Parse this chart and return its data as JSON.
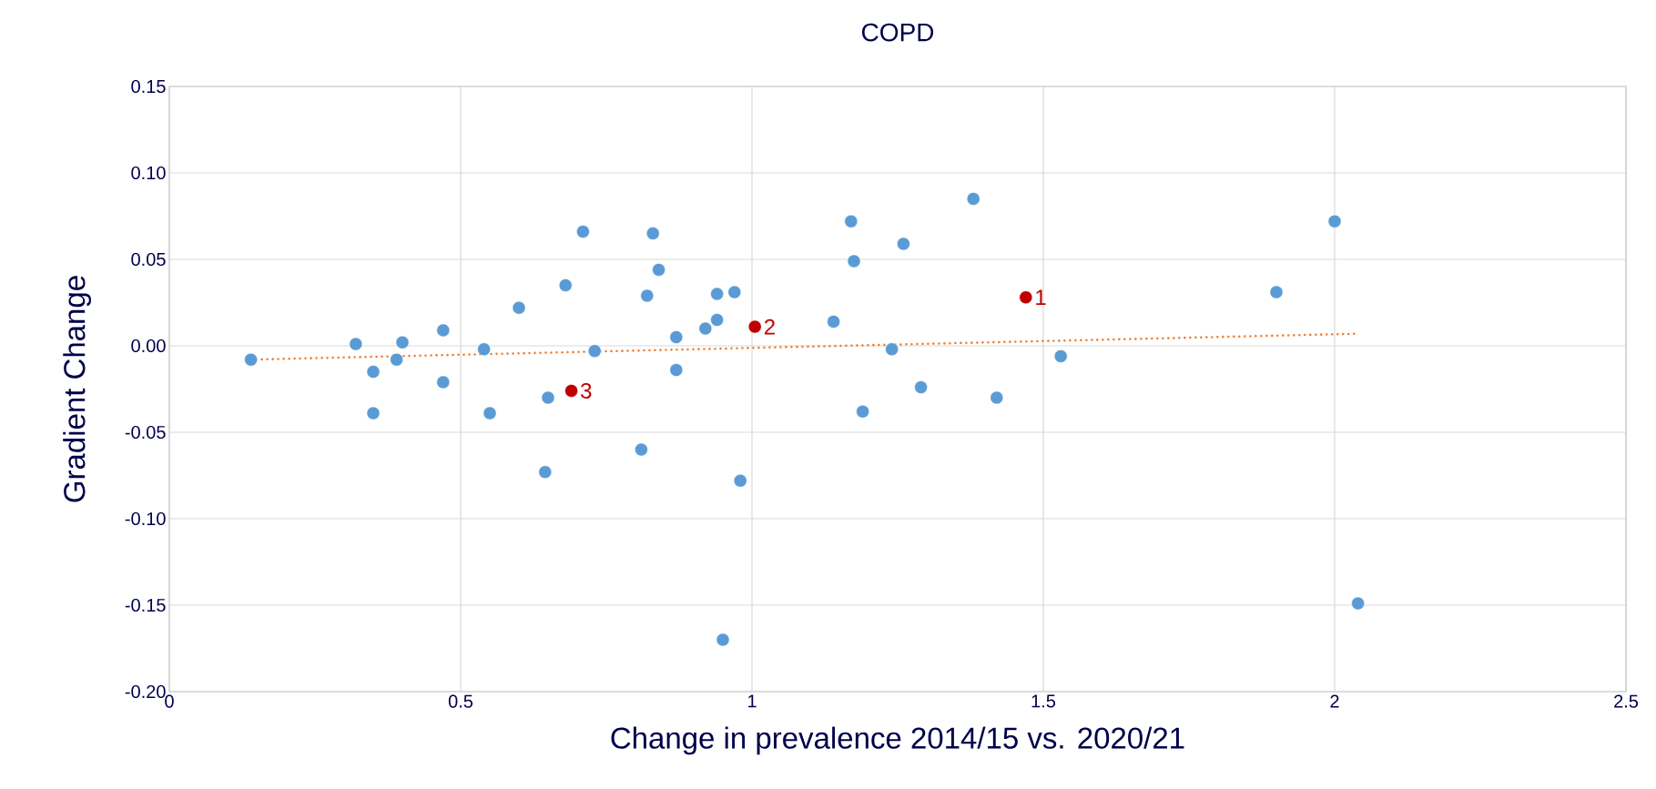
{
  "chart_data": {
    "type": "scatter",
    "title": "COPD",
    "xlabel": "Change in prevalence 2014/15 vs. 2020/21",
    "ylabel": "Gradient Change",
    "series": [
      {
        "color": "#5b9bd5",
        "x": [
          0.14,
          0.32,
          0.35,
          0.35,
          0.39,
          0.4,
          0.47,
          0.47,
          0.54,
          0.55,
          0.6,
          0.65,
          0.68,
          0.71,
          0.73,
          0.645,
          0.81,
          0.82,
          0.83,
          0.84,
          0.87,
          0.87,
          0.92,
          0.94,
          0.94,
          0.97,
          0.98,
          0.95,
          1.14,
          1.17,
          1.175,
          1.19,
          1.24,
          1.26,
          1.29,
          1.38,
          1.42,
          1.53,
          1.9,
          2.0,
          2.04
        ],
        "values": [
          -0.008,
          0.001,
          -0.015,
          -0.039,
          -0.008,
          0.002,
          0.009,
          -0.021,
          -0.002,
          -0.039,
          0.022,
          -0.03,
          0.035,
          0.066,
          -0.003,
          -0.073,
          -0.06,
          0.029,
          0.065,
          0.044,
          0.005,
          -0.014,
          0.01,
          0.03,
          0.015,
          0.031,
          -0.078,
          -0.17,
          0.014,
          0.072,
          0.049,
          -0.038,
          -0.002,
          0.059,
          -0.024,
          0.085,
          -0.03,
          -0.006,
          0.031,
          0.072,
          -0.149
        ]
      },
      {
        "color": "#c00000",
        "x": [
          1.47,
          1.005,
          0.69
        ],
        "values": [
          0.028,
          0.011,
          -0.026
        ]
      },
      {
        "type": "line",
        "color": "#ed7d31",
        "line_style": "dotted",
        "marker": "none",
        "x": [
          0.14,
          2.04
        ],
        "values": [
          -0.008,
          0.007
        ]
      }
    ],
    "annotations": [
      {
        "text": "1",
        "x": 1.47,
        "y": 0.028
      },
      {
        "text": "2",
        "x": 1.005,
        "y": 0.011
      },
      {
        "text": "3",
        "x": 0.69,
        "y": -0.026
      }
    ],
    "marker": "circle",
    "grid": true,
    "xlim": [
      0,
      2.5
    ],
    "xticks": [
      0,
      0.5,
      1,
      1.5,
      2,
      2.5
    ],
    "ylim": [
      -0.2,
      0.15
    ],
    "yticks": [
      {
        "value": -0.2,
        "label": "-0.20"
      },
      {
        "value": -0.15,
        "label": "-0.15"
      },
      {
        "value": -0.1,
        "label": "-0.10"
      },
      {
        "value": -0.05,
        "label": "-0.05"
      },
      {
        "value": 0,
        "label": "0.00"
      },
      {
        "value": 0.05,
        "label": "0.05"
      },
      {
        "value": 0.1,
        "label": "0.10"
      },
      {
        "value": 0.15,
        "label": "0.15"
      }
    ]
  }
}
